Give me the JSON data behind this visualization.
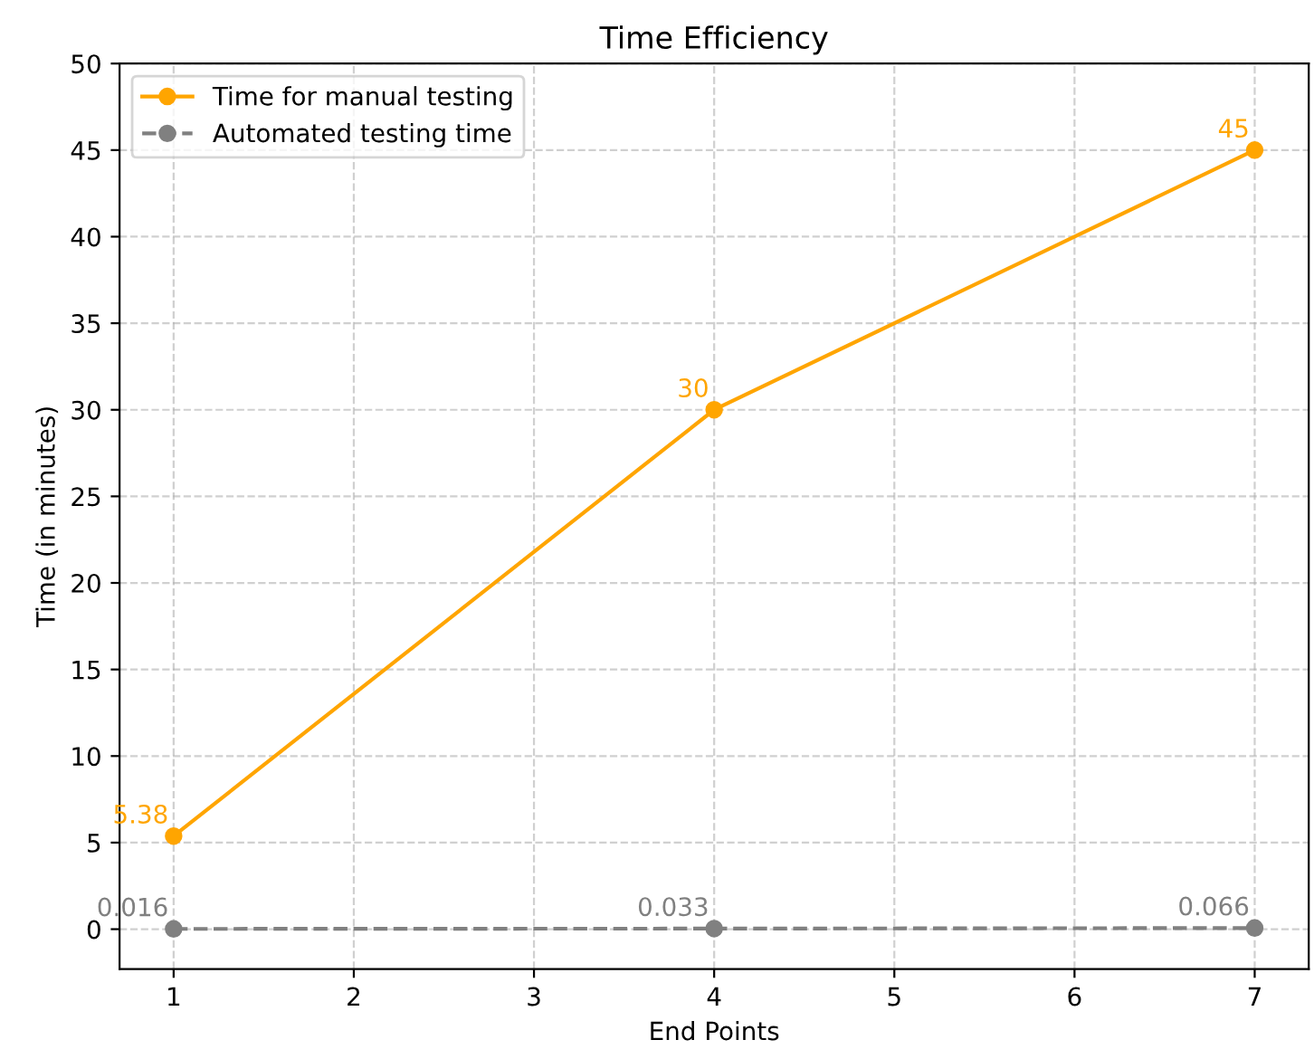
{
  "chart_data": {
    "type": "line",
    "title": "Time Efficiency",
    "xlabel": "End Points",
    "ylabel": "Time (in minutes)",
    "x": [
      1,
      4,
      7
    ],
    "series": [
      {
        "name": "Time for manual testing",
        "color": "#ffa500",
        "values": [
          5.38,
          30,
          45
        ],
        "line_style": "solid"
      },
      {
        "name": "Automated testing time",
        "color": "#808080",
        "values": [
          0.016,
          0.033,
          0.066
        ],
        "line_style": "dashed"
      }
    ],
    "xlim": [
      0.7,
      7.3
    ],
    "ylim": [
      -2.3,
      50
    ],
    "xticks": [
      1,
      2,
      3,
      4,
      5,
      6,
      7
    ],
    "yticks": [
      0,
      5,
      10,
      15,
      20,
      25,
      30,
      35,
      40,
      45,
      50
    ],
    "grid": true,
    "legend": "top left",
    "marker": "circle",
    "data_labels": true
  }
}
